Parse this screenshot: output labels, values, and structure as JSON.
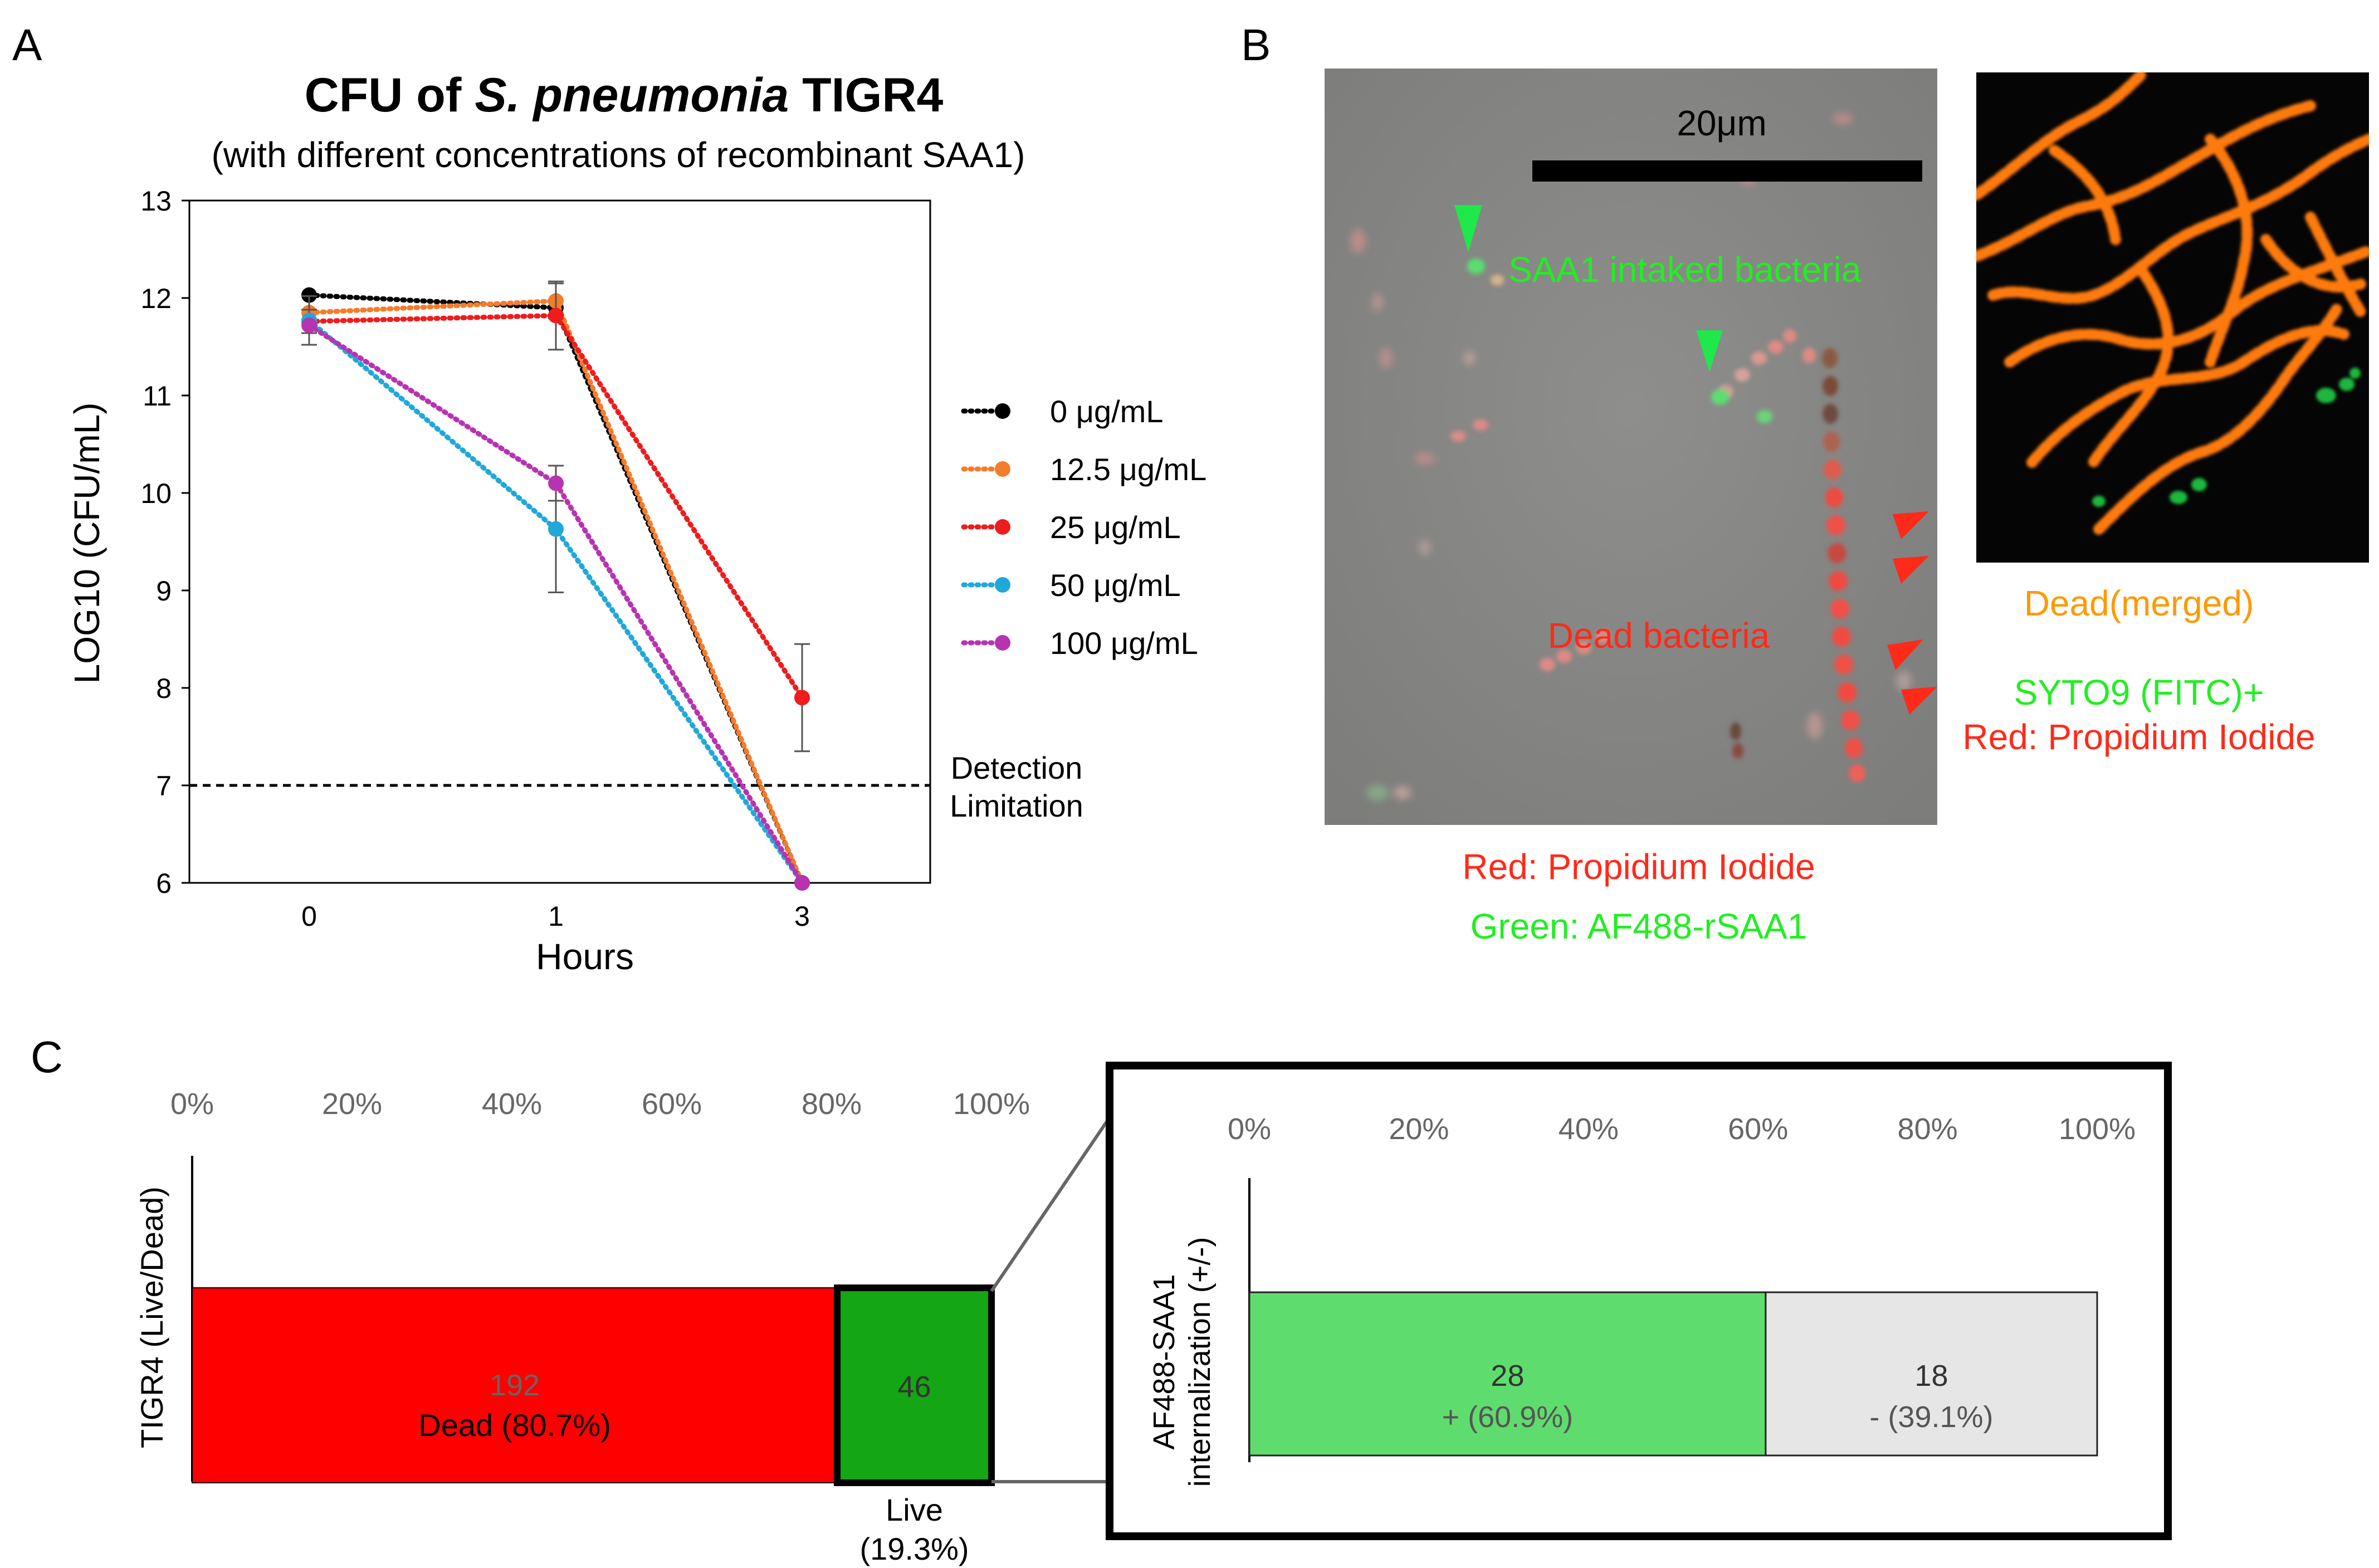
{
  "panels": {
    "a": "A",
    "b": "B",
    "c": "C"
  },
  "colors": {
    "s0": "#000000",
    "s12": "#f57c2c",
    "s25": "#ee1c1c",
    "s50": "#20a8d8",
    "s100": "#b733b0",
    "dead": "#ff0000",
    "live": "#14a614",
    "pos": "#5fdc6e",
    "neg": "#e6e6e6",
    "green_text": "#22ee22",
    "red_text": "#ff2a1a",
    "orange_text": "#ff9900",
    "grey_text": "#666666"
  },
  "chart_data": [
    {
      "type": "line",
      "title": "CFU of S. pneumonia TIGR4",
      "title_parts": [
        "CFU of ",
        "S. pneumonia",
        " TIGR4"
      ],
      "subtitle": "(with different concentrations of recombinant SAA1)",
      "xlabel": "Hours",
      "ylabel": "LOG10 (CFU/mL)",
      "categories": [
        "0",
        "1",
        "3"
      ],
      "ylim": [
        6,
        13
      ],
      "yticks": [
        "6",
        "7",
        "8",
        "9",
        "10",
        "11",
        "12",
        "13"
      ],
      "series": [
        {
          "name": "0 μg/mL",
          "color": "#000000",
          "values": [
            12.03,
            11.9,
            6.0
          ],
          "err": [
            0,
            0,
            0
          ]
        },
        {
          "name": "12.5 μg/mL",
          "color": "#f57c2c",
          "values": [
            11.85,
            11.97,
            6.0
          ],
          "err": [
            0,
            0.18,
            0
          ]
        },
        {
          "name": "25 μg/mL",
          "color": "#ee1c1c",
          "values": [
            11.76,
            11.82,
            7.9
          ],
          "err": [
            0.12,
            0.35,
            0.55
          ]
        },
        {
          "name": "50 μg/mL",
          "color": "#20a8d8",
          "values": [
            11.77,
            9.63,
            6.0
          ],
          "err": [
            0.25,
            0.65,
            0
          ]
        },
        {
          "name": "100 μg/mL",
          "color": "#b733b0",
          "values": [
            11.72,
            10.1,
            6.0
          ],
          "err": [
            0,
            0.18,
            0
          ]
        }
      ],
      "detection_limit": {
        "value": 7,
        "label_lines": [
          "Detection",
          "Limitation"
        ]
      }
    },
    {
      "type": "bar",
      "orientation": "horizontal-stacked",
      "ylabel": "TIGR4 (Live/Dead)",
      "xticks": [
        "0%",
        "20%",
        "40%",
        "60%",
        "80%",
        "100%"
      ],
      "segments": [
        {
          "name": "Dead",
          "count": "192",
          "label": "Dead (80.7%)",
          "percent": 80.7,
          "color": "#ff0000"
        },
        {
          "name": "Live",
          "count": "46",
          "label_lines": [
            "Live",
            "(19.3%)"
          ],
          "percent": 19.3,
          "color": "#14a614"
        }
      ]
    },
    {
      "type": "bar",
      "orientation": "horizontal-stacked",
      "ylabel_lines": [
        "AF488-SAA1",
        "internalization (+/-)"
      ],
      "xticks": [
        "0%",
        "20%",
        "40%",
        "60%",
        "80%",
        "100%"
      ],
      "segments": [
        {
          "name": "+",
          "count": "28",
          "label": "+ (60.9%)",
          "percent": 60.9,
          "color": "#5fdc6e"
        },
        {
          "name": "-",
          "count": "18",
          "label": "- (39.1%)",
          "percent": 39.1,
          "color": "#e6e6e6"
        }
      ]
    }
  ],
  "micrograph1": {
    "scale_bar": "20μm",
    "label_saa1": "SAA1 intaked bacteria",
    "label_dead": "Dead bacteria",
    "caption_red": "Red: Propidium Iodide",
    "caption_green": "Green: AF488-rSAA1"
  },
  "micrograph2": {
    "caption_title": "Dead(merged)",
    "caption_green": "SYTO9 (FITC)+",
    "caption_red": "Red: Propidium Iodide"
  }
}
